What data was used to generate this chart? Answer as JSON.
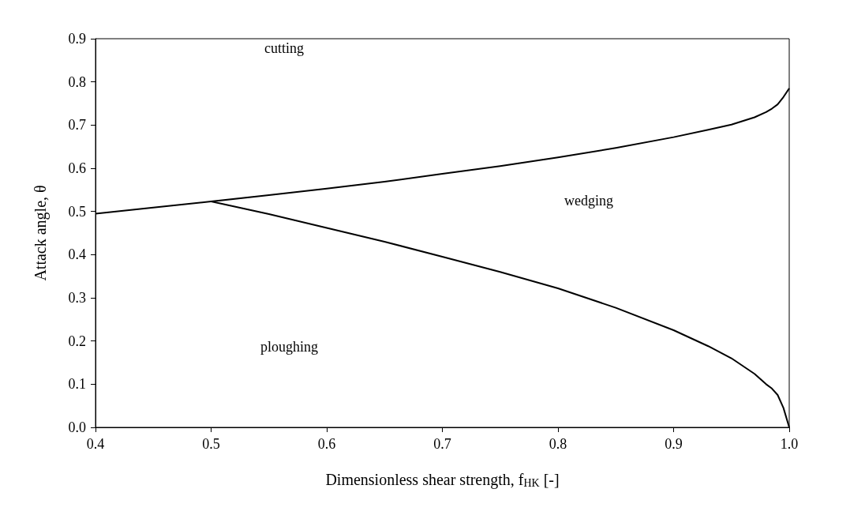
{
  "chart_data": {
    "type": "line",
    "xlabel": "Dimensionless shear strength, f$_{HK}$ [-]",
    "ylabel": "Attack angle, θ",
    "series": [
      {
        "color": "#000000",
        "x": [
          0.4,
          0.45,
          0.5,
          0.55,
          0.6,
          0.65,
          0.7,
          0.75,
          0.8,
          0.85,
          0.9,
          0.93,
          0.95,
          0.97,
          0.98,
          0.985,
          0.99,
          0.995,
          1.0
        ],
        "values": [
          0.495,
          0.509,
          0.523,
          0.538,
          0.553,
          0.569,
          0.587,
          0.605,
          0.625,
          0.647,
          0.672,
          0.689,
          0.701,
          0.718,
          0.73,
          0.738,
          0.748,
          0.765,
          0.785
        ]
      },
      {
        "color": "#000000",
        "x": [
          0.5,
          0.55,
          0.6,
          0.65,
          0.7,
          0.75,
          0.8,
          0.85,
          0.9,
          0.93,
          0.95,
          0.97,
          0.98,
          0.985,
          0.99,
          0.995,
          1.0
        ],
        "values": [
          0.523,
          0.494,
          0.462,
          0.43,
          0.395,
          0.36,
          0.322,
          0.277,
          0.225,
          0.188,
          0.16,
          0.124,
          0.1,
          0.09,
          0.075,
          0.045,
          0.0
        ]
      }
    ],
    "annotations": [
      "cutting",
      "wedging",
      "ploughing"
    ],
    "xlim": [
      0.4,
      1.0
    ],
    "xticks": [
      {
        "value": 0.4,
        "label": "0.4"
      },
      {
        "value": 0.5,
        "label": "0.5"
      },
      {
        "value": 0.6,
        "label": "0.6"
      },
      {
        "value": 0.7,
        "label": "0.7"
      },
      {
        "value": 0.8,
        "label": "0.8"
      },
      {
        "value": 0.9,
        "label": "0.9"
      },
      {
        "value": 1.0,
        "label": "1.0"
      }
    ],
    "ylim": [
      0,
      0.9
    ],
    "yticks": [
      {
        "value": 0,
        "label": "0.0"
      },
      {
        "value": 0.1,
        "label": "0.1"
      },
      {
        "value": 0.2,
        "label": "0.2"
      },
      {
        "value": 0.3,
        "label": "0.3"
      },
      {
        "value": 0.4,
        "label": "0.4"
      },
      {
        "value": 0.5,
        "label": "0.5"
      },
      {
        "value": 0.6,
        "label": "0.6"
      },
      {
        "value": 0.7,
        "label": "0.7"
      },
      {
        "value": 0.8,
        "label": "0.8"
      },
      {
        "value": 0.9,
        "label": "0.9"
      }
    ],
    "grid": false,
    "marker": "none",
    "line_style": "solid"
  }
}
